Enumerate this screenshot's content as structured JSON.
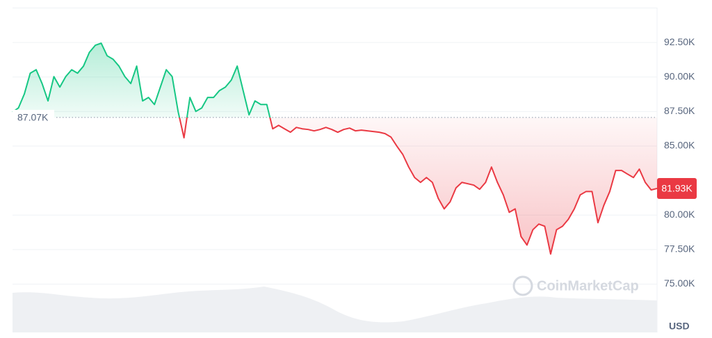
{
  "chart_data": {
    "type": "line",
    "currency": "USD",
    "watermark": "CoinMarketCap",
    "colors": {
      "up": "#16c784",
      "down": "#ea3943"
    },
    "baseline": {
      "value": 87070,
      "label": "87.07K"
    },
    "last_price": {
      "value": 81930,
      "label": "81.93K"
    },
    "ylim": [
      71500,
      95000
    ],
    "yticks": [
      {
        "value": 75000,
        "label": "75.00K"
      },
      {
        "value": 77500,
        "label": "77.50K"
      },
      {
        "value": 80000,
        "label": "80.00K"
      },
      {
        "value": 85000,
        "label": "85.00K"
      },
      {
        "value": 87500,
        "label": "87.50K"
      },
      {
        "value": 90000,
        "label": "90.00K"
      },
      {
        "value": 92500,
        "label": "92.50K"
      }
    ],
    "grid": true,
    "series": [
      {
        "values": [
          87460,
          87760,
          88770,
          90280,
          90530,
          89530,
          88270,
          90030,
          89270,
          90030,
          90530,
          90280,
          90790,
          91790,
          92300,
          92450,
          91540,
          91290,
          90790,
          90030,
          89530,
          90790,
          88270,
          88520,
          88010,
          89270,
          90530,
          90030,
          87510,
          85600,
          88520,
          87510,
          87760,
          88520,
          88520,
          89020,
          89270,
          89780,
          90790,
          89020,
          87260,
          88270,
          88010,
          88010,
          86250,
          86500,
          86250,
          86000,
          86350,
          86250,
          86200,
          86100,
          86200,
          86350,
          86200,
          86000,
          86200,
          86300,
          86100,
          86150,
          86100,
          86050,
          86000,
          85900,
          85650,
          84990,
          84390,
          83480,
          82720,
          82370,
          82720,
          82370,
          81210,
          80450,
          80960,
          81970,
          82370,
          82270,
          82170,
          81870,
          82370,
          83480,
          82370,
          81460,
          80200,
          80450,
          78440,
          77830,
          78940,
          79350,
          79190,
          77180,
          78940,
          79190,
          79700,
          80450,
          81460,
          81710,
          81710,
          79450,
          80710,
          81710,
          83230,
          83230,
          82970,
          82720,
          83330,
          82370,
          81820,
          81930
        ]
      }
    ]
  }
}
